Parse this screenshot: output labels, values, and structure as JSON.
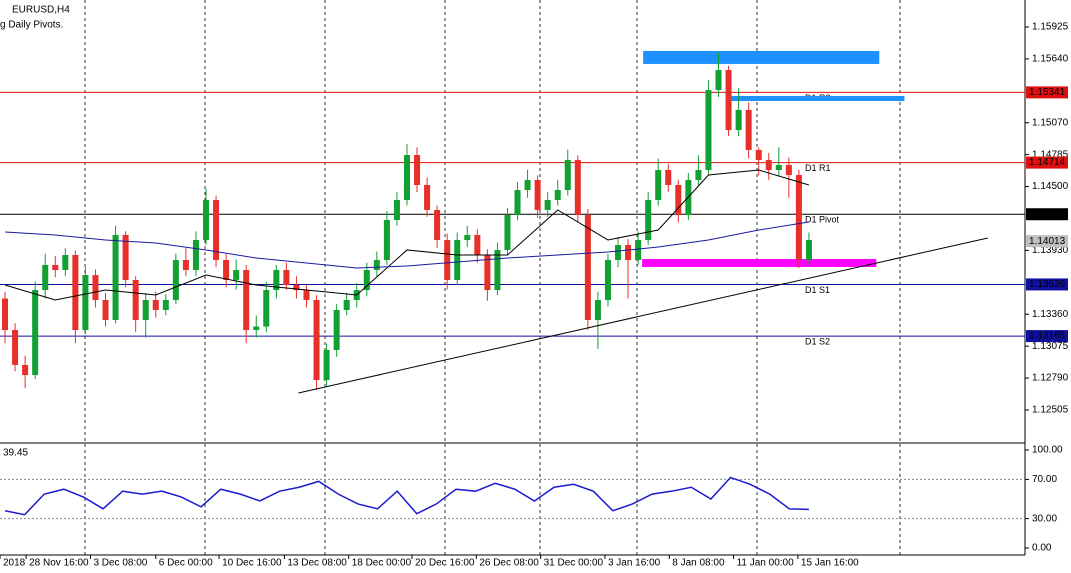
{
  "chart_data": {
    "type": "candlestick",
    "title": "EURUSD,H4",
    "subtitle": "g Daily Pivots.",
    "xlim": [
      -0.5,
      101.5
    ],
    "ylim": [
      1.12237,
      1.16166
    ],
    "colors": {
      "up": "#12a032",
      "down": "#e8302a",
      "ma_fast": "#000000",
      "ma_slow": "#1a1aa0",
      "rsi": "#1a1ad0"
    },
    "yticks": [
      1.15925,
      {
        "value": 1.1564,
        "label": "1.15640"
      },
      {
        "value": 1.1507,
        "label": "1.15070"
      },
      1.14785,
      {
        "value": 1.145,
        "label": "1.14500"
      },
      {
        "value": 1.1393,
        "label": "1.13930"
      },
      {
        "value": 1.1336,
        "label": "1.13360"
      },
      1.13075,
      {
        "value": 1.1279,
        "label": "1.12790"
      },
      1.12505
    ],
    "xticks": [
      {
        "value": -0.5,
        "label": "2018"
      },
      {
        "value": 2.1,
        "label": "28 Nov 16:00"
      },
      {
        "value": 8.5,
        "label": "3 Dec 08:00"
      },
      {
        "value": 15,
        "label": "6 Dec 00:00"
      },
      {
        "value": 21.3,
        "label": "10 Dec 16:00"
      },
      {
        "value": 27.8,
        "label": "13 Dec 08:00"
      },
      {
        "value": 34.2,
        "label": "18 Dec 00:00"
      },
      {
        "value": 40.5,
        "label": "20 Dec 16:00"
      },
      {
        "value": 46.9,
        "label": "26 Dec 08:00"
      },
      {
        "value": 53.3,
        "label": "31 Dec 00:00"
      },
      {
        "value": 59.7,
        "label": "3 Jan 16:00"
      },
      {
        "value": 66.1,
        "label": "8 Jan 08:00"
      },
      {
        "value": 72.5,
        "label": "11 Jan 00:00"
      },
      {
        "value": 78.9,
        "label": "15 Jan 16:00"
      }
    ],
    "candles": [
      [
        1.135,
        1.1356,
        1.131,
        1.13219
      ],
      [
        1.13219,
        1.1328,
        1.1285,
        1.12907
      ],
      [
        1.12907,
        1.1299,
        1.127,
        1.12817
      ],
      [
        1.12817,
        1.1365,
        1.1278,
        1.13576
      ],
      [
        1.13576,
        1.139,
        1.135,
        1.138
      ],
      [
        1.138,
        1.1388,
        1.1369,
        1.13755
      ],
      [
        1.13755,
        1.1395,
        1.137,
        1.13889
      ],
      [
        1.13889,
        1.1393,
        1.131,
        1.13219
      ],
      [
        1.13219,
        1.1378,
        1.1318,
        1.1371
      ],
      [
        1.1371,
        1.1376,
        1.1342,
        1.13487
      ],
      [
        1.13487,
        1.1355,
        1.1325,
        1.13309
      ],
      [
        1.13309,
        1.1415,
        1.1328,
        1.14068
      ],
      [
        1.14068,
        1.141,
        1.136,
        1.13666
      ],
      [
        1.13666,
        1.137,
        1.132,
        1.13309
      ],
      [
        1.13309,
        1.1355,
        1.1315,
        1.13487
      ],
      [
        1.13487,
        1.1356,
        1.1333,
        1.13398
      ],
      [
        1.13398,
        1.1354,
        1.1335,
        1.13487
      ],
      [
        1.13487,
        1.139,
        1.1345,
        1.13844
      ],
      [
        1.13844,
        1.1395,
        1.137,
        1.13755
      ],
      [
        1.13755,
        1.141,
        1.137,
        1.14023
      ],
      [
        1.14023,
        1.1448,
        1.1398,
        1.1438
      ],
      [
        1.1438,
        1.1442,
        1.1378,
        1.13844
      ],
      [
        1.13844,
        1.139,
        1.136,
        1.13666
      ],
      [
        1.13666,
        1.1385,
        1.1358,
        1.13755
      ],
      [
        1.13755,
        1.138,
        1.131,
        1.13219
      ],
      [
        1.13219,
        1.1335,
        1.1315,
        1.1325
      ],
      [
        1.1325,
        1.1365,
        1.132,
        1.13576
      ],
      [
        1.13576,
        1.138,
        1.135,
        1.13755
      ],
      [
        1.13755,
        1.1382,
        1.1358,
        1.13621
      ],
      [
        1.13621,
        1.137,
        1.135,
        1.13576
      ],
      [
        1.13576,
        1.1362,
        1.1342,
        1.13487
      ],
      [
        1.13487,
        1.1353,
        1.12683,
        1.12773
      ],
      [
        1.12773,
        1.131,
        1.1272,
        1.13041
      ],
      [
        1.13041,
        1.1345,
        1.1298,
        1.13398
      ],
      [
        1.13398,
        1.1355,
        1.1335,
        1.13487
      ],
      [
        1.13487,
        1.1364,
        1.1342,
        1.13576
      ],
      [
        1.13576,
        1.1382,
        1.1352,
        1.13755
      ],
      [
        1.13755,
        1.1392,
        1.137,
        1.13844
      ],
      [
        1.13844,
        1.1428,
        1.138,
        1.14202
      ],
      [
        1.14202,
        1.1445,
        1.1415,
        1.1438
      ],
      [
        1.1438,
        1.1488,
        1.1433,
        1.14782
      ],
      [
        1.14782,
        1.1485,
        1.1445,
        1.14514
      ],
      [
        1.14514,
        1.1458,
        1.1423,
        1.14291
      ],
      [
        1.14291,
        1.1433,
        1.1395,
        1.14023
      ],
      [
        1.14023,
        1.1408,
        1.1358,
        1.13666
      ],
      [
        1.13666,
        1.1409,
        1.1362,
        1.14023
      ],
      [
        1.14023,
        1.1415,
        1.1396,
        1.14068
      ],
      [
        1.14068,
        1.1412,
        1.1382,
        1.13889
      ],
      [
        1.13889,
        1.1394,
        1.1348,
        1.13576
      ],
      [
        1.13576,
        1.14,
        1.1353,
        1.13934
      ],
      [
        1.13934,
        1.1431,
        1.1389,
        1.14246
      ],
      [
        1.14246,
        1.1454,
        1.142,
        1.14469
      ],
      [
        1.14469,
        1.1465,
        1.144,
        1.14559
      ],
      [
        1.14559,
        1.146,
        1.1422,
        1.14291
      ],
      [
        1.14291,
        1.1445,
        1.1423,
        1.1438
      ],
      [
        1.1438,
        1.1456,
        1.1433,
        1.14469
      ],
      [
        1.14469,
        1.1483,
        1.1442,
        1.14737
      ],
      [
        1.14737,
        1.1478,
        1.1418,
        1.14246
      ],
      [
        1.14246,
        1.143,
        1.1322,
        1.13309
      ],
      [
        1.13309,
        1.1356,
        1.1305,
        1.13487
      ],
      [
        1.13487,
        1.139,
        1.1343,
        1.13844
      ],
      [
        1.13844,
        1.1405,
        1.1378,
        1.13978
      ],
      [
        1.13978,
        1.1403,
        1.135,
        1.13844
      ],
      [
        1.13844,
        1.141,
        1.138,
        1.14023
      ],
      [
        1.14023,
        1.1445,
        1.1398,
        1.1438
      ],
      [
        1.1438,
        1.1475,
        1.1433,
        1.14648
      ],
      [
        1.14648,
        1.147,
        1.1445,
        1.14514
      ],
      [
        1.14514,
        1.1456,
        1.1418,
        1.14246
      ],
      [
        1.14246,
        1.1462,
        1.142,
        1.14559
      ],
      [
        1.14559,
        1.1478,
        1.145,
        1.14648
      ],
      [
        1.14648,
        1.1545,
        1.146,
        1.15362
      ],
      [
        1.15362,
        1.15702,
        1.153,
        1.15541
      ],
      [
        1.15541,
        1.1558,
        1.1495,
        1.15005
      ],
      [
        1.15005,
        1.1538,
        1.1495,
        1.15184
      ],
      [
        1.15184,
        1.1525,
        1.1475,
        1.14827
      ],
      [
        1.14827,
        1.1485,
        1.146,
        1.14737
      ],
      [
        1.14737,
        1.148,
        1.1456,
        1.14648
      ],
      [
        1.14648,
        1.1485,
        1.146,
        1.14693
      ],
      [
        1.14693,
        1.1476,
        1.144,
        1.14603
      ],
      [
        1.14603,
        1.1465,
        1.13773,
        1.13844
      ],
      [
        1.13844,
        1.1409,
        1.138,
        1.14023
      ]
    ],
    "ma_fast": [
      1.13621,
      1.13487,
      1.13576,
      1.13532,
      1.1371,
      1.13621,
      1.13576,
      1.13532,
      1.13934,
      1.13889,
      1.13889,
      1.14291,
      1.14023,
      1.14112,
      1.14603,
      1.14648,
      1.14514
    ],
    "ma_slow": [
      1.14094,
      1.14068,
      1.14023,
      1.13996,
      1.13934,
      1.13862,
      1.13818,
      1.13773,
      1.13791,
      1.13826,
      1.13862,
      1.13889,
      1.13916,
      1.1396,
      1.14023,
      1.14112,
      1.14184
    ],
    "levels": [
      {
        "name": "D1 R2",
        "value": 1.15341,
        "color": "#e01010"
      },
      {
        "name": "D1 R1",
        "value": 1.14714,
        "color": "#e01010"
      },
      {
        "name": "D1 Pivot",
        "value": 1.14253,
        "color": "#000000"
      },
      {
        "name": "D1 S1",
        "value": 1.13626,
        "color": "#1010a0"
      },
      {
        "name": "D1 S2",
        "value": 1.13165,
        "color": "#1010a0"
      }
    ],
    "current_price": 1.14013,
    "rectangles": [
      {
        "x": [
          63.5,
          87
        ],
        "y": [
          1.15711,
          1.15595
        ],
        "color": "#1e90ff"
      },
      {
        "x": [
          72.3,
          89.5
        ],
        "y": [
          1.15309,
          1.15264
        ],
        "color": "#1e90ff"
      },
      {
        "x": [
          63.4,
          86.7
        ],
        "y": [
          1.13853,
          1.13782
        ],
        "color": "#ff00ff"
      }
    ],
    "trendline": {
      "x": [
        29.2,
        97.8
      ],
      "y": [
        1.12657,
        1.14041
      ],
      "color": "#000000"
    },
    "rsi": {
      "current": 39.45,
      "ylim": [
        -7.1,
        105.1
      ],
      "yticks": [
        {
          "value": 100,
          "label": "100.00"
        },
        {
          "value": 70,
          "label": "70.00"
        },
        {
          "value": 30,
          "label": "30.00"
        },
        {
          "value": 0,
          "label": "0.00"
        }
      ],
      "levels": [
        70,
        30
      ],
      "values": [
        38,
        34,
        55,
        60,
        52,
        40,
        58,
        55,
        58,
        52,
        42,
        60,
        55,
        48,
        58,
        62,
        68,
        55,
        45,
        40,
        58,
        35,
        45,
        60,
        58,
        66,
        60,
        48,
        62,
        65,
        58,
        38,
        45,
        55,
        58,
        62,
        50,
        72,
        65,
        55,
        40,
        39.45
      ]
    }
  }
}
